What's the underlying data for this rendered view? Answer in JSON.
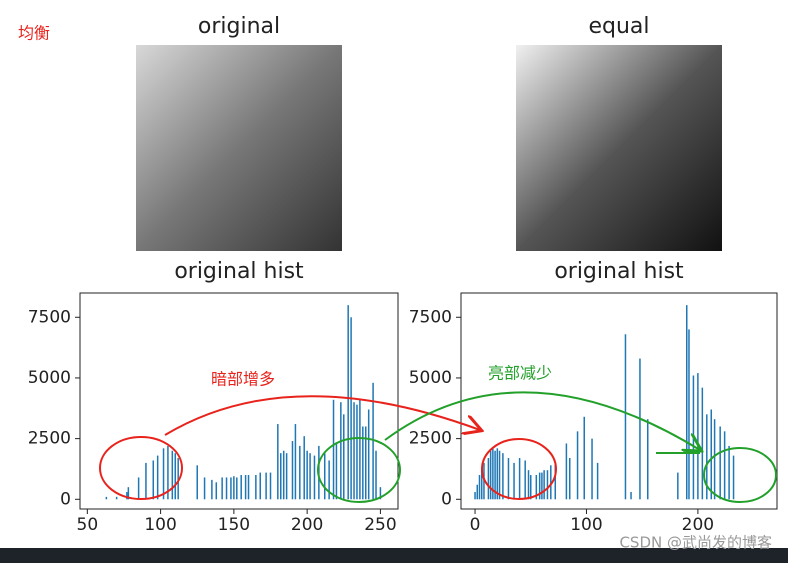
{
  "label": "均衡",
  "images": [
    {
      "title": "original"
    },
    {
      "title": "equal"
    }
  ],
  "annotations": [
    "暗部增多",
    "亮部减少"
  ],
  "watermark": "CSDN @武尚发的博客",
  "chart_data": [
    {
      "type": "bar",
      "title": "original hist",
      "color": "#1f77b4",
      "x": [
        63,
        70,
        77,
        78,
        85,
        90,
        95,
        98,
        102,
        105,
        108,
        110,
        112,
        125,
        130,
        135,
        138,
        142,
        145,
        148,
        150,
        152,
        155,
        158,
        160,
        165,
        168,
        172,
        175,
        180,
        182,
        184,
        186,
        190,
        192,
        195,
        198,
        200,
        202,
        205,
        208,
        212,
        215,
        218,
        220,
        223,
        225,
        228,
        230,
        232,
        234,
        236,
        238,
        240,
        242,
        245,
        247,
        250
      ],
      "values": [
        100,
        100,
        300,
        500,
        900,
        1500,
        1600,
        1800,
        2100,
        2200,
        2000,
        1900,
        1700,
        1400,
        900,
        800,
        700,
        900,
        900,
        900,
        950,
        900,
        1000,
        1000,
        1000,
        1000,
        1100,
        1100,
        1100,
        3100,
        1900,
        2000,
        1900,
        2400,
        3100,
        2200,
        2600,
        2000,
        1900,
        1800,
        2200,
        1900,
        1600,
        4100,
        2300,
        4000,
        3500,
        8000,
        7500,
        4000,
        3900,
        4100,
        3000,
        3000,
        3700,
        4800,
        2000,
        500
      ],
      "xlim": [
        45,
        262
      ],
      "ylim": [
        -400,
        8500
      ],
      "xticks": [
        50,
        100,
        150,
        200,
        250
      ],
      "yticks": [
        0,
        2500,
        5000,
        7500
      ]
    },
    {
      "type": "bar",
      "title": "original hist",
      "color": "#1f77b4",
      "x": [
        0,
        2,
        4,
        6,
        8,
        12,
        14,
        16,
        18,
        20,
        22,
        25,
        30,
        35,
        40,
        45,
        48,
        50,
        55,
        58,
        60,
        62,
        65,
        68,
        72,
        82,
        85,
        92,
        98,
        105,
        110,
        135,
        140,
        148,
        155,
        182,
        190,
        192,
        196,
        200,
        204,
        208,
        212,
        215,
        220,
        224,
        228,
        232
      ],
      "values": [
        300,
        600,
        1000,
        1300,
        1500,
        1700,
        2000,
        2100,
        2000,
        2100,
        2000,
        1900,
        1700,
        1500,
        1700,
        1600,
        1200,
        1000,
        1000,
        1100,
        1100,
        1200,
        1200,
        1400,
        1500,
        2300,
        1700,
        2800,
        3400,
        2500,
        1500,
        6800,
        300,
        5800,
        3300,
        1100,
        8000,
        7000,
        5100,
        5200,
        4600,
        3500,
        3700,
        3300,
        3000,
        2800,
        2200,
        1800
      ],
      "xlim": [
        -12.6,
        271
      ],
      "ylim": [
        -400,
        8500
      ],
      "xticks": [
        0,
        100,
        200
      ],
      "yticks": [
        0,
        2500,
        5000,
        7500
      ]
    }
  ]
}
